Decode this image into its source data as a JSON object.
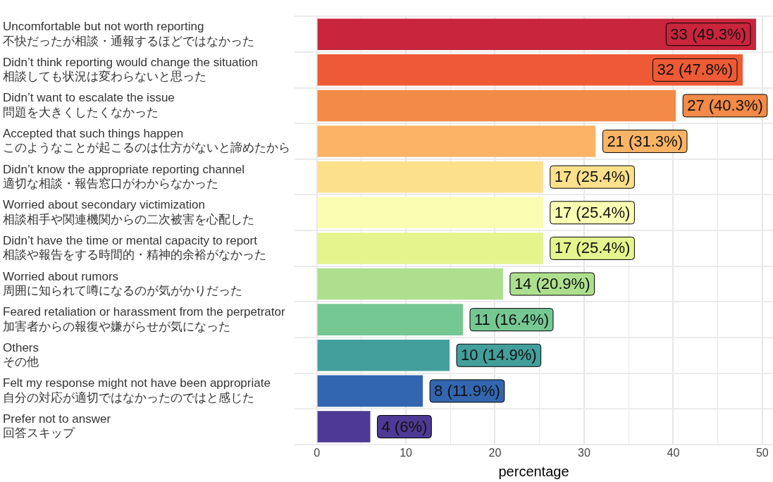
{
  "chart_data": {
    "type": "bar",
    "orientation": "horizontal",
    "xlabel": "percentage",
    "categories": [
      "Uncomfortable but not worth reporting\n不快だったが相談・通報するほどではなかった",
      "Didn’t think reporting would change the situation\n相談しても状況は変わらないと思った",
      "Didn’t want to escalate the issue\n問題を大きくしたくなかった",
      "Accepted that such things happen\nこのようなことが起こるのは仕方がないと諦めたから",
      "Didn’t know the appropriate reporting channel\n適切な相談・報告窓口がわからなかった",
      "Worried about secondary victimization\n相談相手や関連機関からの二次被害を心配した",
      "Didn’t have the time or mental capacity to report\n相談や報告をする時間的・精神的余裕がなかった",
      "Worried about rumors\n周囲に知られて噂になるのが気がかりだった",
      "Feared retaliation or harassment from the perpetrator\n加害者からの報復や嫌がらせが気になった",
      "Others\nその他",
      "Felt my response might not have been appropriate\n自分の対応が適切ではなかったのではと感じた",
      "Prefer not to answer\n回答スキップ"
    ],
    "values": [
      49.3,
      47.8,
      40.3,
      31.3,
      25.4,
      25.4,
      25.4,
      20.9,
      16.4,
      14.9,
      11.9,
      6
    ],
    "value_labels": [
      "33 (49.3%)",
      "32 (47.8%)",
      "27 (40.3%)",
      "21 (31.3%)",
      "17 (25.4%)",
      "17 (25.4%)",
      "17 (25.4%)",
      "14 (20.9%)",
      "11 (16.4%)",
      "10 (14.9%)",
      "8 (11.9%)",
      "4 (6%)"
    ],
    "colors": [
      "#c9253d",
      "#ee5a36",
      "#f38a47",
      "#fbb466",
      "#fde08c",
      "#fbfdb3",
      "#e5f48c",
      "#addf8e",
      "#76c893",
      "#439f9c",
      "#3366b0",
      "#4d3a94"
    ],
    "xlim": [
      -2.5,
      51.2
    ],
    "xticks": [
      0,
      {
        "value": 5,
        "label": null
      },
      10,
      {
        "value": 15,
        "label": null
      },
      20,
      {
        "value": 25,
        "label": null
      },
      30,
      {
        "value": 35,
        "label": null
      },
      40,
      {
        "value": 45,
        "label": null
      },
      50
    ],
    "grid": true,
    "legend": false
  }
}
